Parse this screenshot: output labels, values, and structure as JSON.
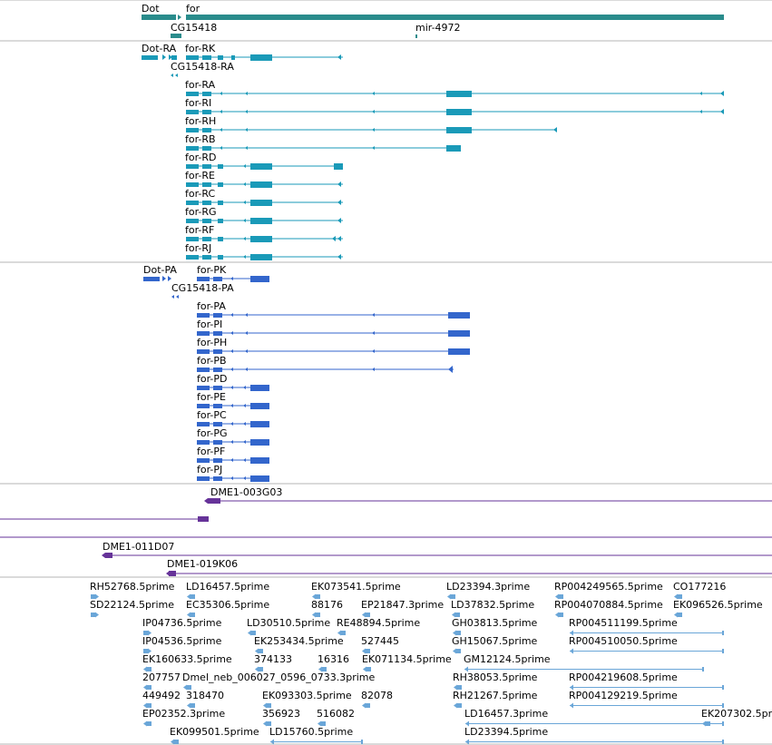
{
  "colors": {
    "gene": "#2a8c8c",
    "rna": "#1a9ab8",
    "protein": "#3366cc",
    "clone": "#663399",
    "est": "#6aa6d8",
    "separator": "#b4b4b4"
  },
  "tracks": {
    "genes": {
      "labels": [
        "Dot",
        "for",
        "CG15418",
        "mir-4972"
      ]
    },
    "transcripts": {
      "labels": [
        "Dot-RA",
        "for-RK",
        "CG15418-RA",
        "for-RA",
        "for-RI",
        "for-RH",
        "for-RB",
        "for-RD",
        "for-RE",
        "for-RC",
        "for-RG",
        "for-RF",
        "for-RJ"
      ]
    },
    "proteins": {
      "labels": [
        "Dot-PA",
        "for-PK",
        "CG15418-PA",
        "for-PA",
        "for-PI",
        "for-PH",
        "for-PB",
        "for-PD",
        "for-PE",
        "for-PC",
        "for-PG",
        "for-PF",
        "for-PJ"
      ]
    },
    "clones": {
      "labels": [
        "DME1-003G03",
        "DME1-011D07",
        "DME1-019K06"
      ]
    },
    "ests": {
      "labels": [
        "RH52768.5prime",
        "LD16457.5prime",
        "EK073541.5prime",
        "LD23394.3prime",
        "RP004249565.5prime",
        "CO177216",
        "SD22124.5prime",
        "EC35306.5prime",
        "88176",
        "EP21847.3prime",
        "LD37832.5prime",
        "RP004070884.5prime",
        "EK096526.5prime",
        "IP04736.5prime",
        "LD30510.5prime",
        "RE48894.5prime",
        "GH03813.5prime",
        "RP004511199.5prime",
        "IP04536.5prime",
        "EK253434.5prime",
        "527445",
        "GH15067.5prime",
        "RP004510050.5prime",
        "EK160633.5prime",
        "374133",
        "16316",
        "EK071134.5prime",
        "GM12124.5prime",
        "207757",
        "Dmel_neb_006027_0596_0733.3prime",
        "RH38053.5prime",
        "RP004219608.5prime",
        "449492",
        "318470",
        "EK093303.5prime",
        "82078",
        "RH21267.5prime",
        "RP004129219.5prime",
        "EP02352.3prime",
        "356923",
        "516082",
        "LD16457.3prime",
        "EK207302.5prime",
        "EK099501.5prime",
        "LD15760.5prime",
        "LD23394.5prime"
      ]
    }
  }
}
